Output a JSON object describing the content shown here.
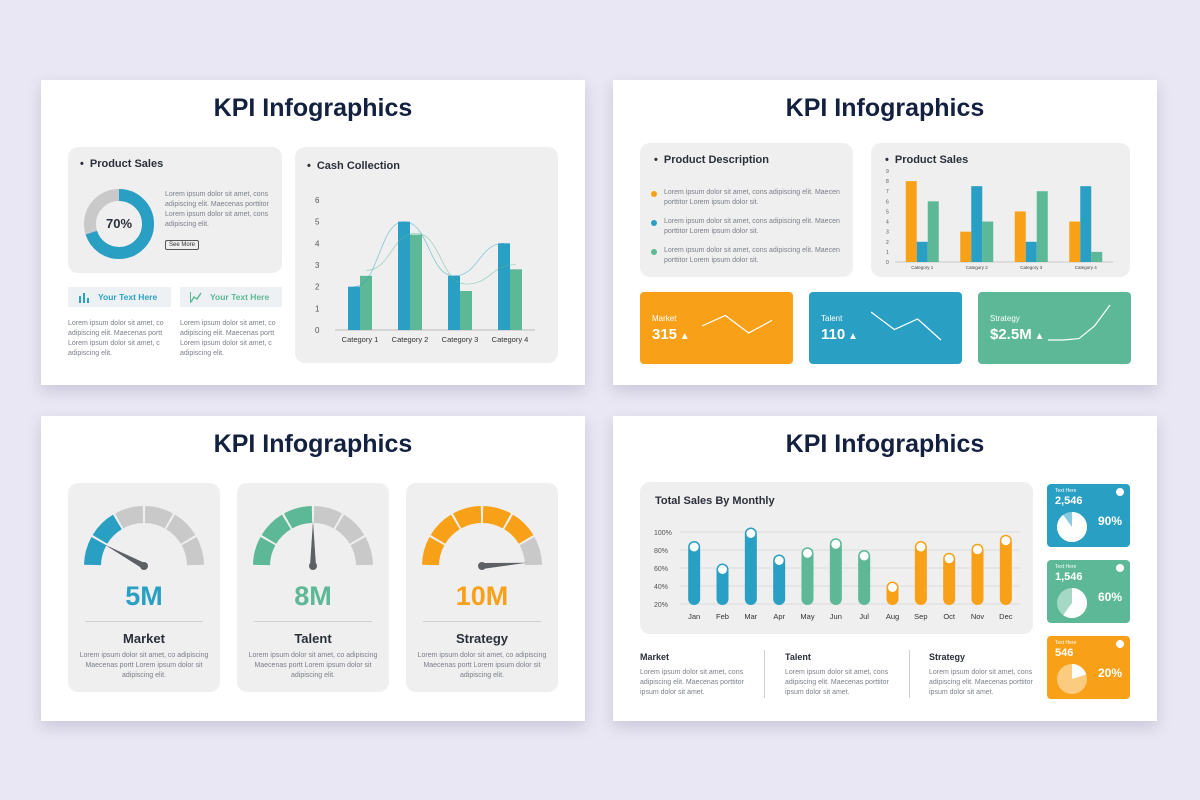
{
  "colors": {
    "blue": "#2a9fc4",
    "green": "#5cb896",
    "orange": "#f8a118",
    "gray": "#c9c9c9",
    "navy": "#13203f"
  },
  "slide_title": "KPI Infographics",
  "slide1": {
    "product_sales": {
      "title": "Product Sales",
      "percent_label": "70%",
      "percent_value": 70,
      "lorem": "Lorem ipsum dolor sit amet, cons adipiscing elit. Maecenas porttitor Lorem ipsum dolor sit amet, cons adipiscing elit.",
      "see_more": "See More"
    },
    "tags": [
      {
        "label": "Your Text Here",
        "icon": "bar-chart-icon",
        "lorem": "Lorem ipsum dolor sit amet, co adipiscing elit. Maecenas portt Lorem ipsum dolor sit amet, c adipiscing elit."
      },
      {
        "label": "Your Text Here",
        "icon": "line-chart-icon",
        "lorem": "Lorem ipsum dolor sit amet, co adipiscing elit. Maecenas portt Lorem ipsum dolor sit amet, c adipiscing elit."
      }
    ],
    "cash_collection_title": "Cash Collection"
  },
  "slide2": {
    "description": {
      "title": "Product Description",
      "items": [
        {
          "color": "#f8a118",
          "text": "Lorem ipsum dolor sit amet, cons adipiscing elit. Maecen porttitor Lorem ipsum dolor sit."
        },
        {
          "color": "#2a9fc4",
          "text": "Lorem ipsum dolor sit amet, cons adipiscing elit. Maecen porttitor Lorem ipsum dolor sit."
        },
        {
          "color": "#5cb896",
          "text": "Lorem ipsum dolor sit amet, cons adipiscing elit. Maecen porttitor Lorem ipsum dolor sit."
        }
      ]
    },
    "product_sales_title": "Product Sales",
    "kpis": [
      {
        "label": "Market",
        "value": "315",
        "color": "#f8a118"
      },
      {
        "label": "Talent",
        "value": "110",
        "color": "#2a9fc4"
      },
      {
        "label": "Strategy",
        "value": "$2.5M",
        "color": "#5cb896"
      }
    ]
  },
  "slide3": {
    "gauges": [
      {
        "value": "5M",
        "label": "Market",
        "color": "#2a9fc4",
        "filled": 2,
        "lorem": "Lorem ipsum dolor sit amet, co adipiscing Maecenas portt Lorem ipsum dolor sit adipiscing elit."
      },
      {
        "value": "8M",
        "label": "Talent",
        "color": "#5cb896",
        "filled": 3,
        "lorem": "Lorem ipsum dolor sit amet, co adipiscing Maecenas portt Lorem ipsum dolor sit adipiscing elit."
      },
      {
        "value": "10M",
        "label": "Strategy",
        "color": "#f8a118",
        "filled": 5,
        "lorem": "Lorem ipsum dolor sit amet, co adipiscing Maecenas portt Lorem ipsum dolor sit adipiscing elit."
      }
    ]
  },
  "slide4": {
    "monthly_title": "Total Sales By Monthly",
    "columns": [
      {
        "title": "Market",
        "lorem": "Lorem ipsum dolor sit amet, cons adipiscing elit. Maecenas porttitor ipsum dolor sit amet."
      },
      {
        "title": "Talent",
        "lorem": "Lorem ipsum dolor sit amet, cons adipiscing elit. Maecenas porttitor ipsum dolor sit amet."
      },
      {
        "title": "Strategy",
        "lorem": "Lorem ipsum dolor sit amet, cons adipiscing elit. Maecenas porttitor ipsum dolor sit amet."
      }
    ],
    "cards": [
      {
        "small": "Text Here",
        "number": "2,546",
        "percent": "90%",
        "value": 0.9,
        "color": "#2a9fc4"
      },
      {
        "small": "Text Here",
        "number": "1,546",
        "percent": "60%",
        "value": 0.6,
        "color": "#5cb896"
      },
      {
        "small": "Text Here",
        "number": "546",
        "percent": "20%",
        "value": 0.2,
        "color": "#f8a118"
      }
    ]
  },
  "chart_data": [
    {
      "id": "cash-collection",
      "type": "bar",
      "title": "Cash Collection",
      "categories": [
        "Category 1",
        "Category 2",
        "Category 3",
        "Category 4"
      ],
      "series": [
        {
          "values": [
            2,
            5,
            2.5,
            4
          ],
          "color": "#2a9fc4"
        },
        {
          "values": [
            2.5,
            4.4,
            1.8,
            2.8
          ],
          "color": "#5cb896"
        }
      ],
      "ylim": [
        0,
        6
      ],
      "yticks": [
        0,
        1,
        2,
        3,
        4,
        5,
        6
      ]
    },
    {
      "id": "product-sales",
      "type": "bar",
      "title": "Product Sales",
      "categories": [
        "Category 1",
        "Category 2",
        "Category 3",
        "Category 4"
      ],
      "series": [
        {
          "values": [
            8,
            3,
            5,
            4
          ],
          "color": "#f8a118"
        },
        {
          "values": [
            2,
            7.5,
            2,
            7.5
          ],
          "color": "#2a9fc4"
        },
        {
          "values": [
            6,
            4,
            7,
            1
          ],
          "color": "#5cb896"
        }
      ],
      "ylim": [
        0,
        9
      ],
      "yticks": [
        0,
        1,
        2,
        3,
        4,
        5,
        6,
        7,
        8,
        9
      ]
    },
    {
      "id": "kpi-market-sparkline",
      "type": "line",
      "x": [
        1,
        2,
        3,
        4
      ],
      "values": [
        40,
        55,
        30,
        48
      ]
    },
    {
      "id": "kpi-talent-sparkline",
      "type": "line",
      "x": [
        1,
        2,
        3,
        4
      ],
      "values": [
        60,
        35,
        50,
        20
      ]
    },
    {
      "id": "kpi-strategy-sparkline",
      "type": "line",
      "x": [
        1,
        2,
        3,
        4,
        5
      ],
      "values": [
        20,
        20,
        22,
        40,
        70
      ]
    },
    {
      "id": "total-sales-monthly",
      "type": "bar",
      "title": "Total Sales By Monthly",
      "categories": [
        "Jan",
        "Feb",
        "Mar",
        "Apr",
        "May",
        "Jun",
        "Jul",
        "Aug",
        "Sep",
        "Oct",
        "Nov",
        "Dec"
      ],
      "values": [
        90,
        65,
        105,
        75,
        83,
        93,
        80,
        45,
        90,
        77,
        87,
        97
      ],
      "colors": [
        "#2a9fc4",
        "#2a9fc4",
        "#2a9fc4",
        "#2a9fc4",
        "#5cb896",
        "#5cb896",
        "#5cb896",
        "#f8a118",
        "#f8a118",
        "#f8a118",
        "#f8a118",
        "#f8a118"
      ],
      "yticks": [
        "20%",
        "40%",
        "60%",
        "80%",
        "100%"
      ],
      "ylim": [
        0,
        110
      ]
    }
  ]
}
